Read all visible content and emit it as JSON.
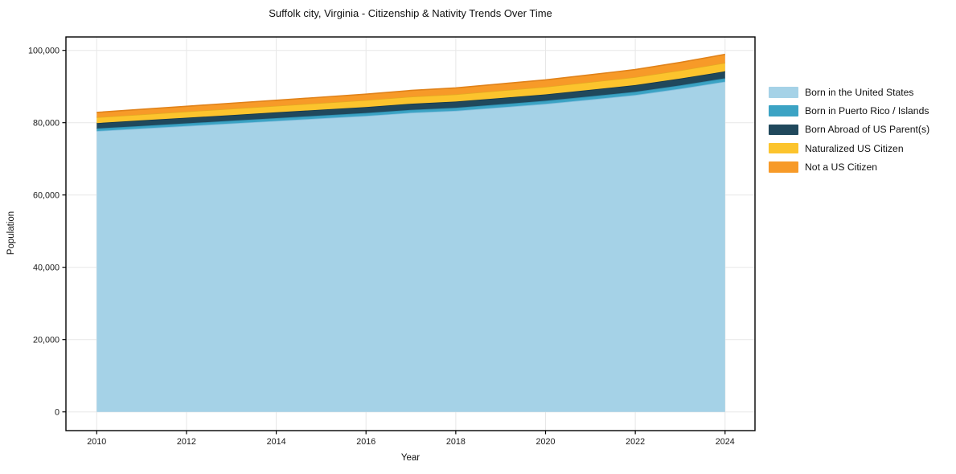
{
  "chart_data": {
    "type": "area",
    "stacked": true,
    "title": "Suffolk city, Virginia - Citizenship & Nativity Trends Over Time",
    "xlabel": "Year",
    "ylabel": "Population",
    "x": [
      2010,
      2011,
      2012,
      2013,
      2014,
      2015,
      2016,
      2017,
      2018,
      2019,
      2020,
      2021,
      2022,
      2023,
      2024
    ],
    "xticks": [
      2010,
      2012,
      2014,
      2016,
      2018,
      2020,
      2022,
      2024
    ],
    "yticks": [
      0,
      20000,
      40000,
      60000,
      80000,
      100000
    ],
    "ytick_labels": [
      "0",
      "20,000",
      "40,000",
      "60,000",
      "80,000",
      "100,000"
    ],
    "xlim": [
      2009.32,
      2024.66
    ],
    "ylim": [
      -5180,
      103700
    ],
    "grid": true,
    "grid_color": "#e7e7e7",
    "spine_color": "#000000",
    "background_color": "#ffffff",
    "legend_position": "right-outside",
    "series": [
      {
        "name": "Born in the United States",
        "color": "#a5d2e7",
        "edge": "#84bedd",
        "values": [
          77700,
          78400,
          79100,
          79800,
          80500,
          81200,
          81900,
          82750,
          83300,
          84250,
          85200,
          86400,
          87650,
          89400,
          91350
        ]
      },
      {
        "name": "Born in Puerto Rico / Islands",
        "color": "#3ba3c4",
        "edge": "#2e8fb0",
        "values": [
          700,
          715,
          730,
          745,
          760,
          775,
          790,
          810,
          830,
          850,
          870,
          890,
          910,
          930,
          950
        ]
      },
      {
        "name": "Born Abroad of US Parent(s)",
        "color": "#20485c",
        "edge": "#16384a",
        "values": [
          1500,
          1525,
          1550,
          1575,
          1600,
          1625,
          1650,
          1680,
          1710,
          1730,
          1750,
          1790,
          1830,
          1865,
          1900
        ]
      },
      {
        "name": "Naturalized US Citizen",
        "color": "#fcc42d",
        "edge": "#e5a922",
        "values": [
          1600,
          1650,
          1700,
          1750,
          1800,
          1850,
          1900,
          1950,
          2000,
          2050,
          2100,
          2160,
          2220,
          2280,
          2350
        ]
      },
      {
        "name": "Not a US Citizen",
        "color": "#f79a28",
        "edge": "#e0821a",
        "values": [
          1350,
          1400,
          1450,
          1500,
          1550,
          1600,
          1650,
          1720,
          1790,
          1860,
          1930,
          2010,
          2090,
          2200,
          2350
        ]
      }
    ]
  }
}
